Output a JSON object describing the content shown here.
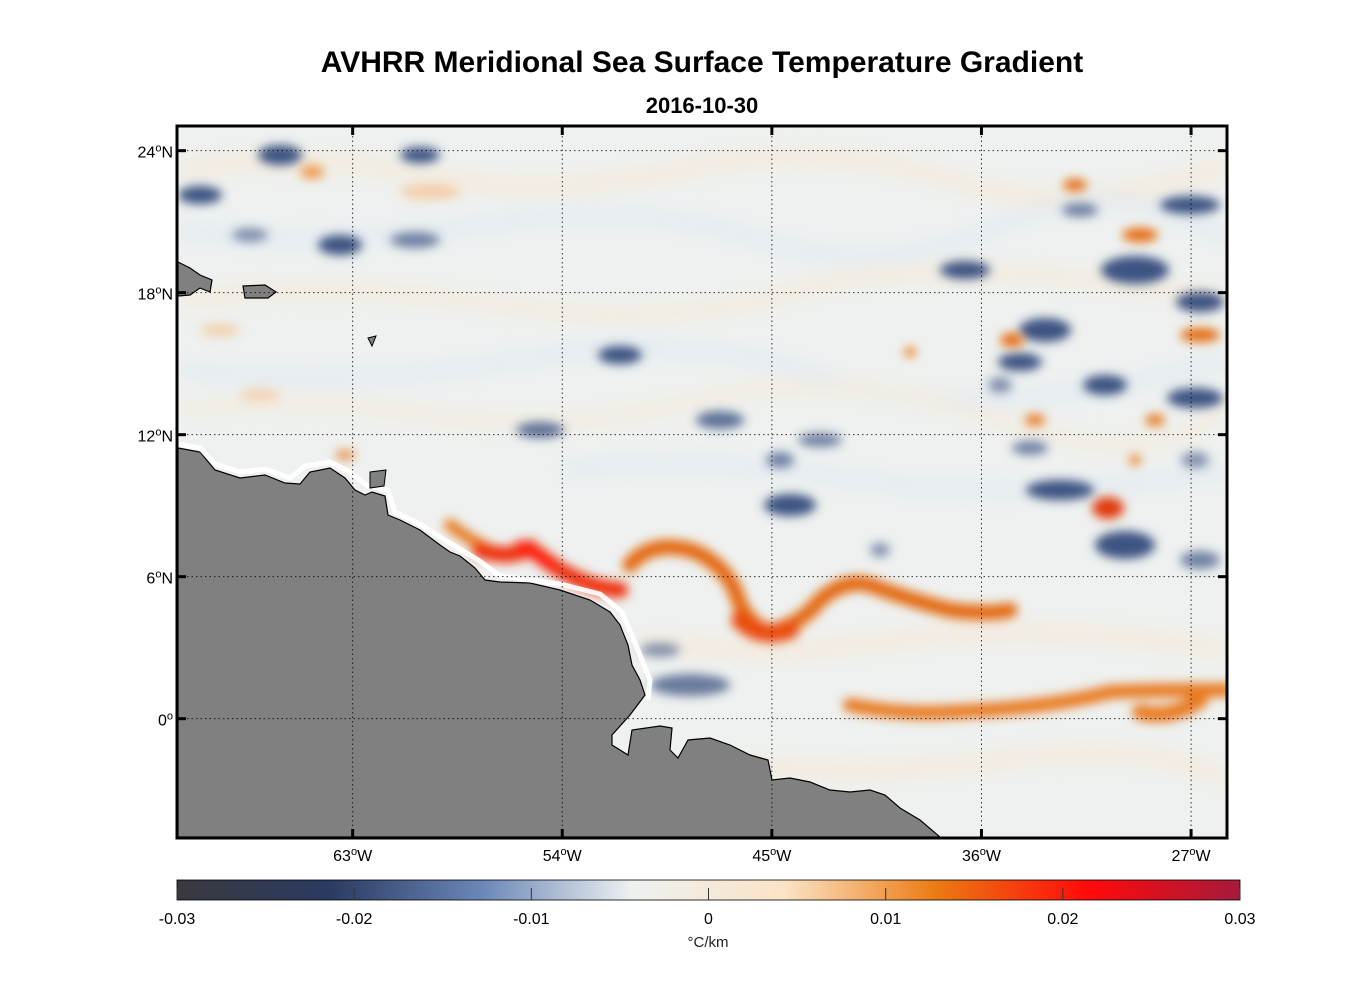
{
  "title": "AVHRR Meridional Sea Surface Temperature Gradient",
  "subtitle": "2016-10-30",
  "map": {
    "lon_range": [
      -70.5,
      -25.5
    ],
    "lat_range": [
      -5,
      25
    ],
    "lat_ticks": [
      {
        "value": 24,
        "label": "24°N"
      },
      {
        "value": 18,
        "label": "18°N"
      },
      {
        "value": 12,
        "label": "12°N"
      },
      {
        "value": 6,
        "label": "6°N"
      },
      {
        "value": 0,
        "label": "0°"
      }
    ],
    "lon_ticks": [
      {
        "value": -63,
        "label": "63°W"
      },
      {
        "value": -54,
        "label": "54°W"
      },
      {
        "value": -45,
        "label": "45°W"
      },
      {
        "value": -36,
        "label": "36°W"
      },
      {
        "value": -27,
        "label": "27°W"
      }
    ],
    "grid": true,
    "land_color": "#808080",
    "ocean_base_color": "#eef1f0"
  },
  "colorbar": {
    "range": [
      -0.03,
      0.03
    ],
    "ticks": [
      "-0.03",
      "-0.02",
      "-0.01",
      "0",
      "0.01",
      "0.02",
      "0.03"
    ],
    "unit": "°C/km",
    "colors": [
      "#3a3a3e",
      "#2a3a62",
      "#6a86b8",
      "#eef1f0",
      "#fbe3c6",
      "#ec7a12",
      "#ff0a0a",
      "#a51a3c"
    ]
  }
}
